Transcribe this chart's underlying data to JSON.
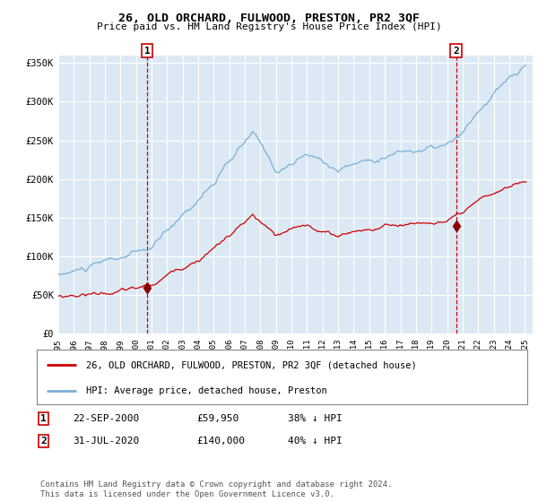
{
  "title": "26, OLD ORCHARD, FULWOOD, PRESTON, PR2 3QF",
  "subtitle": "Price paid vs. HM Land Registry's House Price Index (HPI)",
  "bg_color": "#dce9f5",
  "hpi_color": "#7bafd4",
  "price_color": "#cc0000",
  "marker_color": "#8b0000",
  "vline1_color": "#cc0000",
  "vline2_color": "#cc0000",
  "ylim": [
    0,
    360000
  ],
  "yticks": [
    0,
    50000,
    100000,
    150000,
    200000,
    250000,
    300000,
    350000
  ],
  "ytick_labels": [
    "£0",
    "£50K",
    "£100K",
    "£150K",
    "£200K",
    "£250K",
    "£300K",
    "£350K"
  ],
  "sale1_price": 59950,
  "sale1_year": 2000.72,
  "sale2_price": 140000,
  "sale2_year": 2020.58,
  "legend_property": "26, OLD ORCHARD, FULWOOD, PRESTON, PR2 3QF (detached house)",
  "legend_hpi": "HPI: Average price, detached house, Preston",
  "copyright": "Contains HM Land Registry data © Crown copyright and database right 2024.\nThis data is licensed under the Open Government Licence v3.0."
}
